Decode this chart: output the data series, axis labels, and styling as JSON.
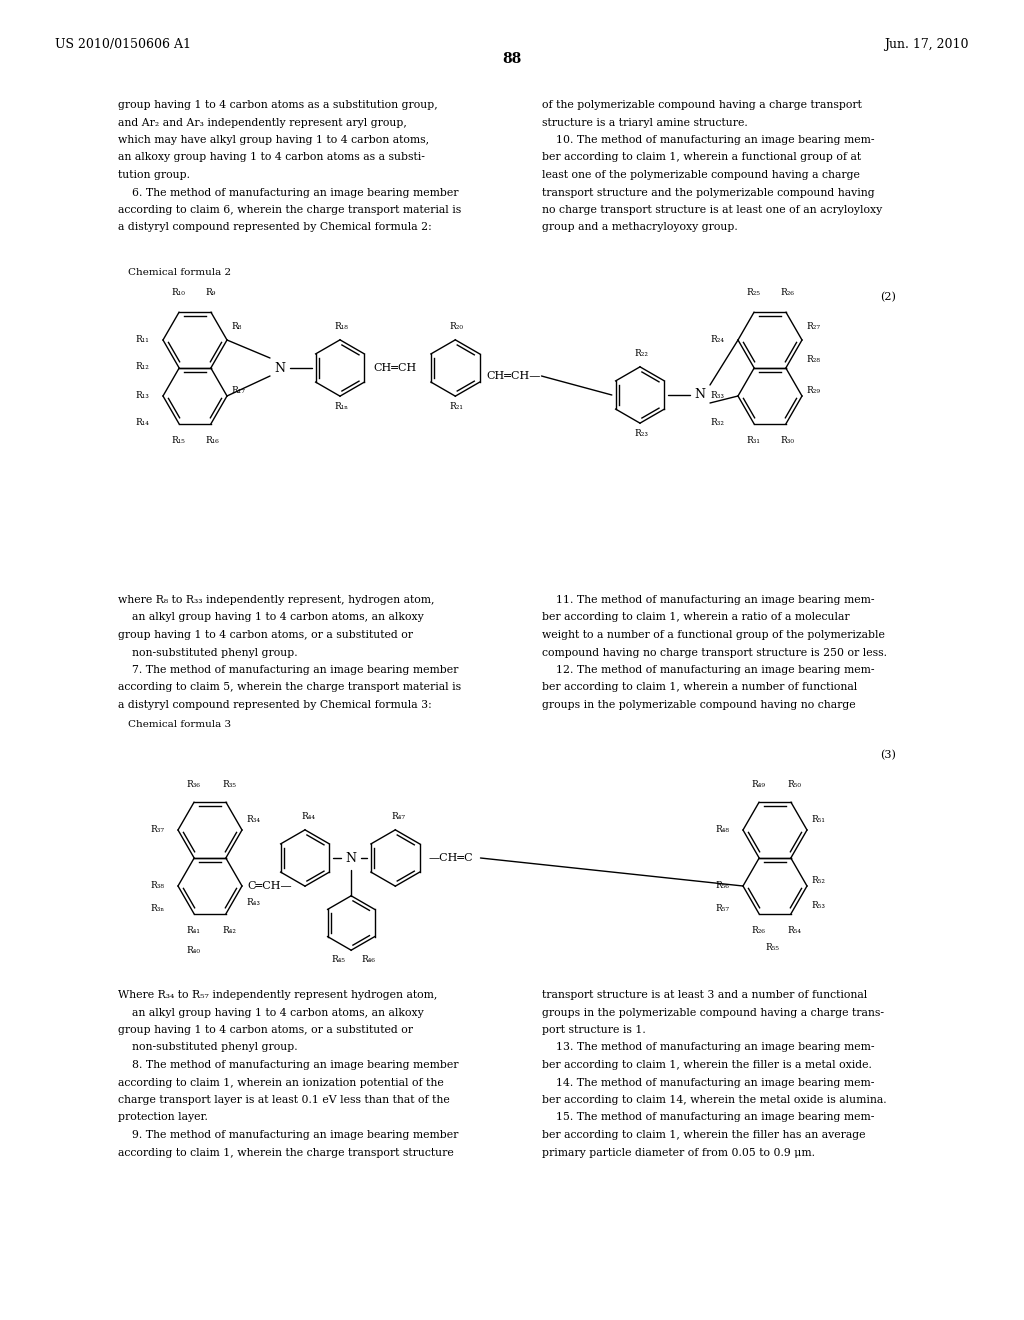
{
  "header_left": "US 2010/0150606 A1",
  "header_right": "Jun. 17, 2010",
  "page_number": "88",
  "bg_color": "#ffffff",
  "para_col1_top": [
    "group having 1 to 4 carbon atoms as a substitution group,",
    "and Ar₂ and Ar₃ independently represent aryl group,",
    "which may have alkyl group having 1 to 4 carbon atoms,",
    "an alkoxy group having 1 to 4 carbon atoms as a substi-",
    "tution group.",
    "    6. The method of manufacturing an image bearing member",
    "according to claim 6, wherein the charge transport material is",
    "a distyryl compound represented by Chemical formula 2:"
  ],
  "para_col2_top": [
    "of the polymerizable compound having a charge transport",
    "structure is a triaryl amine structure.",
    "    10. The method of manufacturing an image bearing mem-",
    "ber according to claim 1, wherein a functional group of at",
    "least one of the polymerizable compound having a charge",
    "transport structure and the polymerizable compound having",
    "no charge transport structure is at least one of an acryloyloxy",
    "group and a methacryloyoxy group."
  ],
  "formula2_label": "Chemical formula 2",
  "formula2_number": "(2)",
  "formula3_label": "Chemical formula 3",
  "formula3_number": "(3)",
  "para_col1_mid": [
    "where R₈ to R₃₃ independently represent, hydrogen atom,",
    "    an alkyl group having 1 to 4 carbon atoms, an alkoxy",
    "group having 1 to 4 carbon atoms, or a substituted or",
    "    non-substituted phenyl group.",
    "    7. The method of manufacturing an image bearing member",
    "according to claim 5, wherein the charge transport material is",
    "a distyryl compound represented by Chemical formula 3:"
  ],
  "para_col2_mid": [
    "    11. The method of manufacturing an image bearing mem-",
    "ber according to claim 1, wherein a ratio of a molecular",
    "weight to a number of a functional group of the polymerizable",
    "compound having no charge transport structure is 250 or less.",
    "    12. The method of manufacturing an image bearing mem-",
    "ber according to claim 1, wherein a number of functional",
    "groups in the polymerizable compound having no charge"
  ],
  "para_col1_bot": [
    "Where R₃₄ to R₅₇ independently represent hydrogen atom,",
    "    an alkyl group having 1 to 4 carbon atoms, an alkoxy",
    "group having 1 to 4 carbon atoms, or a substituted or",
    "    non-substituted phenyl group.",
    "    8. The method of manufacturing an image bearing member",
    "according to claim 1, wherein an ionization potential of the",
    "charge transport layer is at least 0.1 eV less than that of the",
    "protection layer.",
    "    9. The method of manufacturing an image bearing member",
    "according to claim 1, wherein the charge transport structure"
  ],
  "para_col2_bot": [
    "transport structure is at least 3 and a number of functional",
    "groups in the polymerizable compound having a charge trans-",
    "port structure is 1.",
    "    13. The method of manufacturing an image bearing mem-",
    "ber according to claim 1, wherein the filler is a metal oxide.",
    "    14. The method of manufacturing an image bearing mem-",
    "ber according to claim 14, wherein the metal oxide is alumina.",
    "    15. The method of manufacturing an image bearing mem-",
    "ber according to claim 1, wherein the filler has an average",
    "primary particle diameter of from 0.05 to 0.9 μm."
  ]
}
